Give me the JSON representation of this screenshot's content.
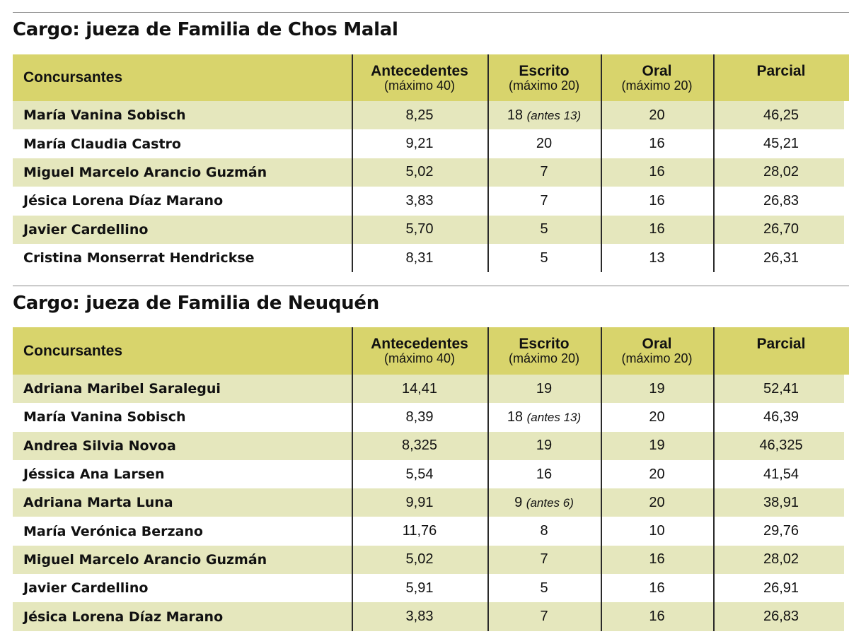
{
  "columns": [
    {
      "label": "Concursantes"
    },
    {
      "label": "Antecedentes",
      "sub": "(máximo 40)"
    },
    {
      "label": "Escrito",
      "sub": "(máximo 20)"
    },
    {
      "label": "Oral",
      "sub": "(máximo 20)"
    },
    {
      "label": "Parcial"
    }
  ],
  "sections": [
    {
      "title": "Cargo: jueza de Familia de Chos Malal",
      "rows": [
        {
          "name": "María Vanina Sobisch",
          "antecedentes": "8,25",
          "escrito": "18",
          "escrito_note": "(antes 13)",
          "oral": "20",
          "parcial": "46,25"
        },
        {
          "name": "María Claudia Castro",
          "antecedentes": "9,21",
          "escrito": "20",
          "oral": "16",
          "parcial": "45,21"
        },
        {
          "name": "Miguel Marcelo Arancio Guzmán",
          "antecedentes": "5,02",
          "escrito": "7",
          "oral": "16",
          "parcial": "28,02"
        },
        {
          "name": "Jésica Lorena Díaz Marano",
          "antecedentes": "3,83",
          "escrito": "7",
          "oral": "16",
          "parcial": "26,83"
        },
        {
          "name": "Javier Cardellino",
          "antecedentes": "5,70",
          "escrito": "5",
          "oral": "16",
          "parcial": "26,70"
        },
        {
          "name": "Cristina Monserrat Hendrickse",
          "antecedentes": "8,31",
          "escrito": "5",
          "oral": "13",
          "parcial": "26,31"
        }
      ]
    },
    {
      "title": "Cargo: jueza de Familia de Neuquén",
      "rows": [
        {
          "name": "Adriana Maribel Saralegui",
          "antecedentes": "14,41",
          "escrito": "19",
          "oral": "19",
          "parcial": "52,41"
        },
        {
          "name": "María Vanina Sobisch",
          "antecedentes": "8,39",
          "escrito": "18",
          "escrito_note": "(antes 13)",
          "oral": "20",
          "parcial": "46,39"
        },
        {
          "name": "Andrea Silvia Novoa",
          "antecedentes": "8,325",
          "escrito": "19",
          "oral": "19",
          "parcial": "46,325"
        },
        {
          "name": "Jéssica Ana Larsen",
          "antecedentes": "5,54",
          "escrito": "16",
          "oral": "20",
          "parcial": "41,54"
        },
        {
          "name": "Adriana Marta Luna",
          "antecedentes": "9,91",
          "escrito": "9",
          "escrito_note": "(antes 6)",
          "oral": "20",
          "parcial": "38,91"
        },
        {
          "name": "María Verónica Berzano",
          "antecedentes": "11,76",
          "escrito": "8",
          "oral": "10",
          "parcial": "29,76"
        },
        {
          "name": "Miguel Marcelo Arancio Guzmán",
          "antecedentes": "5,02",
          "escrito": "7",
          "oral": "16",
          "parcial": "28,02"
        },
        {
          "name": "Javier Cardellino",
          "antecedentes": "5,91",
          "escrito": "5",
          "oral": "16",
          "parcial": "26,91"
        },
        {
          "name": "Jésica Lorena Díaz Marano",
          "antecedentes": "3,83",
          "escrito": "7",
          "oral": "16",
          "parcial": "26,83"
        }
      ]
    }
  ]
}
